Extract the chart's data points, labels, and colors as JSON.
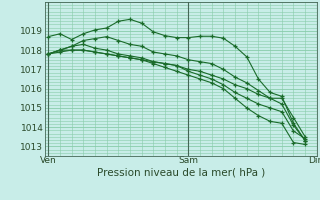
{
  "bg_color": "#c8ede8",
  "grid_color": "#88ccaa",
  "line_color": "#1a6b2a",
  "marker_color": "#1a6b2a",
  "xlabel": "Pression niveau de la mer( hPa )",
  "ylim": [
    1012.5,
    1020.5
  ],
  "yticks": [
    1013,
    1014,
    1015,
    1016,
    1017,
    1018,
    1019
  ],
  "xlabel_fontsize": 7.5,
  "tick_fontsize": 6.5,
  "xtick_labels": [
    "Ven",
    "Sam",
    "Dim"
  ],
  "xtick_positions": [
    0,
    12,
    23
  ],
  "series": [
    [
      1018.7,
      1018.85,
      1018.55,
      1018.85,
      1019.05,
      1019.15,
      1019.5,
      1019.6,
      1019.4,
      1018.95,
      1018.75,
      1018.65,
      1018.65,
      1018.72,
      1018.72,
      1018.62,
      1018.2,
      1017.65,
      1016.5,
      1015.8,
      1015.6,
      1014.2,
      1013.3
    ],
    [
      1017.8,
      1018.0,
      1018.2,
      1018.5,
      1018.6,
      1018.7,
      1018.5,
      1018.3,
      1018.2,
      1017.9,
      1017.8,
      1017.7,
      1017.5,
      1017.4,
      1017.3,
      1017.0,
      1016.6,
      1016.3,
      1015.9,
      1015.5,
      1015.2,
      1014.1,
      1013.3
    ],
    [
      1017.8,
      1018.0,
      1018.2,
      1018.3,
      1018.1,
      1018.0,
      1017.8,
      1017.7,
      1017.6,
      1017.4,
      1017.3,
      1017.2,
      1017.0,
      1016.9,
      1016.7,
      1016.5,
      1016.2,
      1016.0,
      1015.7,
      1015.5,
      1015.5,
      1014.5,
      1013.5
    ],
    [
      1017.8,
      1018.0,
      1018.0,
      1018.0,
      1017.9,
      1017.8,
      1017.7,
      1017.6,
      1017.5,
      1017.4,
      1017.3,
      1017.2,
      1016.9,
      1016.7,
      1016.5,
      1016.2,
      1015.8,
      1015.5,
      1015.2,
      1015.0,
      1014.8,
      1013.8,
      1013.4
    ],
    [
      1017.8,
      1017.9,
      1018.0,
      1018.0,
      1017.9,
      1017.8,
      1017.7,
      1017.6,
      1017.5,
      1017.3,
      1017.1,
      1016.9,
      1016.7,
      1016.5,
      1016.3,
      1016.0,
      1015.5,
      1015.0,
      1014.6,
      1014.3,
      1014.2,
      1013.2,
      1013.1
    ]
  ]
}
